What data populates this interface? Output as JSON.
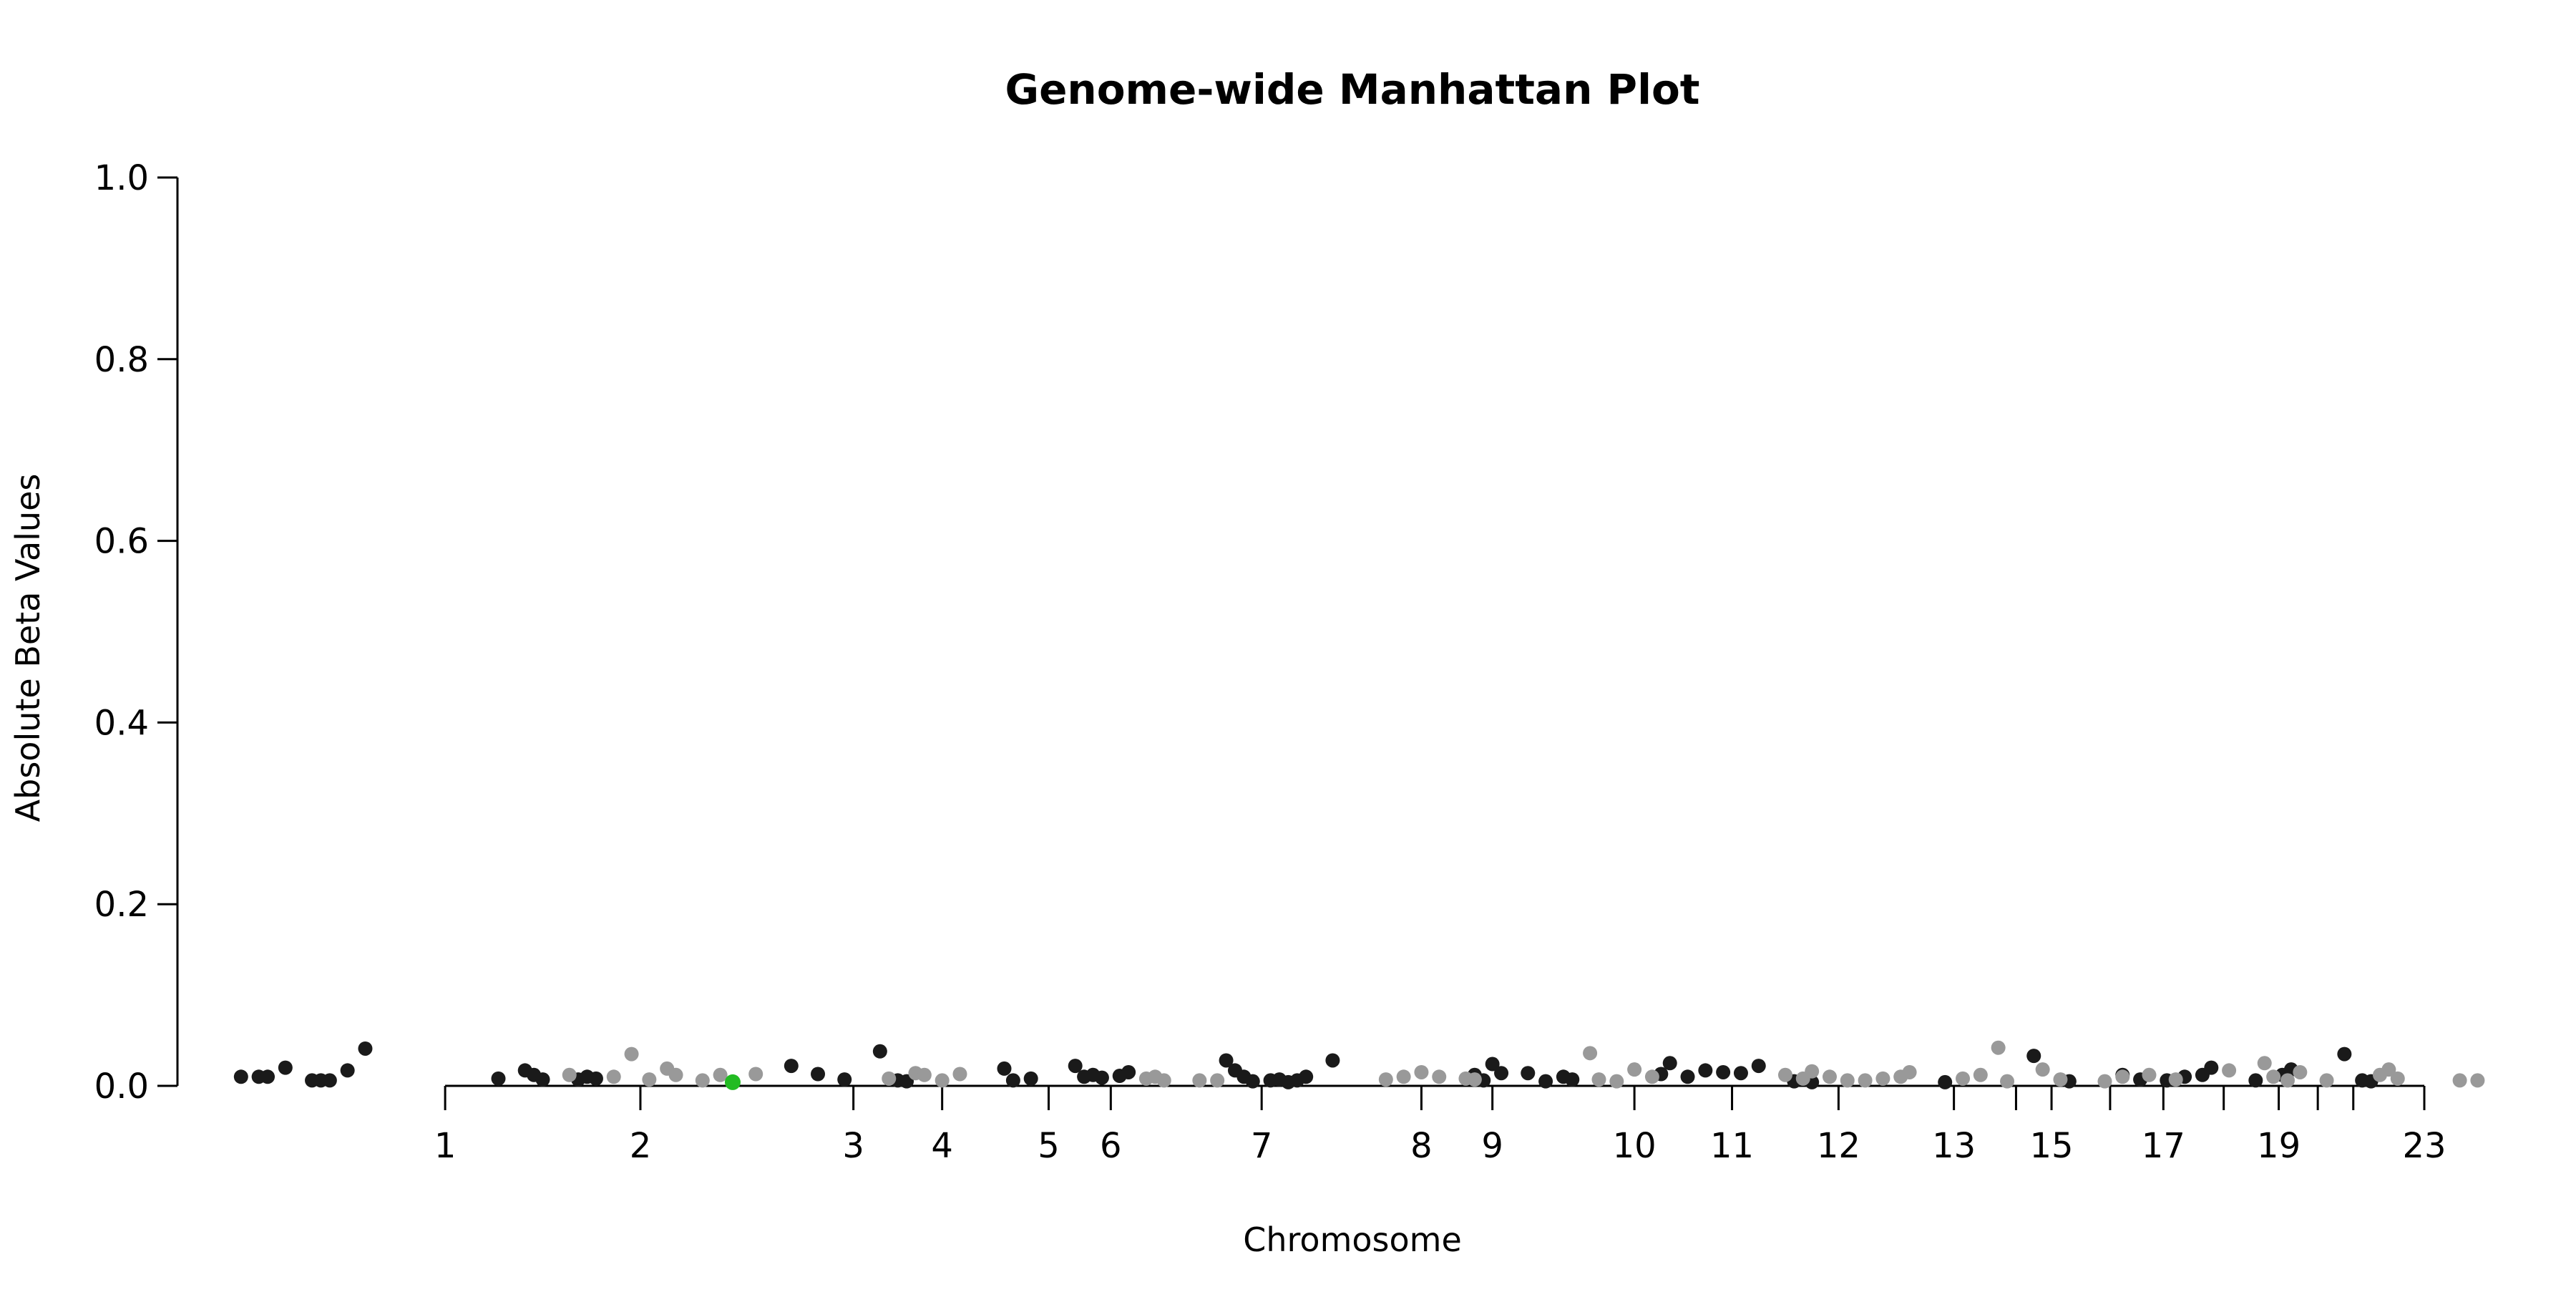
{
  "chart_data": {
    "type": "scatter",
    "title": "Genome-wide Manhattan Plot",
    "xlabel": "Chromosome",
    "ylabel": "Absolute Beta Values",
    "ylim": [
      0,
      1
    ],
    "yticks": [
      "0.0",
      "0.2",
      "0.4",
      "0.6",
      "0.8",
      "1.0"
    ],
    "grid": false,
    "colors": {
      "dark": "#1a1a1a",
      "light": "#999999",
      "highlight": "#22bb22"
    },
    "x_ticks": [
      {
        "label": "1",
        "pos": 1.0
      },
      {
        "label": "2",
        "pos": 2.1
      },
      {
        "label": "3",
        "pos": 3.3
      },
      {
        "label": "4",
        "pos": 3.8
      },
      {
        "label": "5",
        "pos": 4.4
      },
      {
        "label": "6",
        "pos": 4.75
      },
      {
        "label": "7",
        "pos": 5.6
      },
      {
        "label": "8",
        "pos": 6.5
      },
      {
        "label": "9",
        "pos": 6.9
      },
      {
        "label": "10",
        "pos": 7.7
      },
      {
        "label": "11",
        "pos": 8.25
      },
      {
        "label": "12",
        "pos": 8.85
      },
      {
        "label": "13",
        "pos": 9.5
      },
      {
        "label": "",
        "pos": 9.85
      },
      {
        "label": "15",
        "pos": 10.05
      },
      {
        "label": "",
        "pos": 10.38
      },
      {
        "label": "17",
        "pos": 10.68
      },
      {
        "label": "",
        "pos": 11.02
      },
      {
        "label": "19",
        "pos": 11.33
      },
      {
        "label": "",
        "pos": 11.55
      },
      {
        "label": "",
        "pos": 11.75
      },
      {
        "label": "23",
        "pos": 12.15
      }
    ],
    "xlim": [
      -0.5,
      12.4
    ],
    "series": [
      {
        "color_key": "dark",
        "points": [
          [
            -0.15,
            0.01
          ],
          [
            -0.05,
            0.01
          ],
          [
            0.0,
            0.01
          ],
          [
            0.1,
            0.02
          ],
          [
            0.25,
            0.006
          ],
          [
            0.3,
            0.006
          ],
          [
            0.35,
            0.006
          ],
          [
            0.45,
            0.017
          ],
          [
            0.55,
            0.041
          ],
          [
            1.3,
            0.008
          ],
          [
            1.45,
            0.017
          ],
          [
            1.5,
            0.012
          ],
          [
            1.55,
            0.007
          ],
          [
            1.75,
            0.007
          ],
          [
            1.8,
            0.01
          ],
          [
            1.85,
            0.008
          ],
          [
            2.95,
            0.022
          ],
          [
            3.1,
            0.013
          ],
          [
            3.25,
            0.007
          ],
          [
            3.45,
            0.038
          ],
          [
            3.55,
            0.006
          ],
          [
            3.6,
            0.005
          ],
          [
            4.15,
            0.019
          ],
          [
            4.2,
            0.006
          ],
          [
            4.3,
            0.008
          ],
          [
            4.55,
            0.022
          ],
          [
            4.6,
            0.01
          ],
          [
            4.65,
            0.012
          ],
          [
            4.7,
            0.009
          ],
          [
            4.8,
            0.011
          ],
          [
            4.85,
            0.015
          ],
          [
            5.4,
            0.028
          ],
          [
            5.45,
            0.017
          ],
          [
            5.5,
            0.01
          ],
          [
            5.55,
            0.005
          ],
          [
            5.65,
            0.006
          ],
          [
            5.7,
            0.007
          ],
          [
            5.75,
            0.004
          ],
          [
            5.8,
            0.006
          ],
          [
            5.85,
            0.01
          ],
          [
            6.0,
            0.028
          ],
          [
            6.8,
            0.012
          ],
          [
            6.85,
            0.006
          ],
          [
            6.9,
            0.024
          ],
          [
            6.95,
            0.014
          ],
          [
            7.1,
            0.014
          ],
          [
            7.2,
            0.005
          ],
          [
            7.3,
            0.01
          ],
          [
            7.35,
            0.007
          ],
          [
            7.85,
            0.013
          ],
          [
            7.9,
            0.025
          ],
          [
            8.0,
            0.01
          ],
          [
            8.1,
            0.017
          ],
          [
            8.2,
            0.015
          ],
          [
            8.3,
            0.014
          ],
          [
            8.4,
            0.022
          ],
          [
            8.6,
            0.005
          ],
          [
            8.7,
            0.004
          ],
          [
            9.45,
            0.004
          ],
          [
            9.95,
            0.033
          ],
          [
            10.15,
            0.005
          ],
          [
            10.45,
            0.012
          ],
          [
            10.55,
            0.007
          ],
          [
            10.7,
            0.006
          ],
          [
            10.8,
            0.01
          ],
          [
            10.9,
            0.012
          ],
          [
            10.95,
            0.02
          ],
          [
            11.2,
            0.006
          ],
          [
            11.35,
            0.012
          ],
          [
            11.4,
            0.018
          ],
          [
            11.7,
            0.035
          ],
          [
            11.8,
            0.006
          ],
          [
            11.85,
            0.005
          ]
        ]
      },
      {
        "color_key": "light",
        "points": [
          [
            1.7,
            0.012
          ],
          [
            1.95,
            0.01
          ],
          [
            2.05,
            0.035
          ],
          [
            2.15,
            0.007
          ],
          [
            2.25,
            0.019
          ],
          [
            2.3,
            0.012
          ],
          [
            2.45,
            0.006
          ],
          [
            2.55,
            0.012
          ],
          [
            2.75,
            0.013
          ],
          [
            3.5,
            0.008
          ],
          [
            3.65,
            0.014
          ],
          [
            3.7,
            0.012
          ],
          [
            3.8,
            0.006
          ],
          [
            3.9,
            0.013
          ],
          [
            4.95,
            0.008
          ],
          [
            5.0,
            0.01
          ],
          [
            5.05,
            0.006
          ],
          [
            5.25,
            0.006
          ],
          [
            5.35,
            0.006
          ],
          [
            6.3,
            0.007
          ],
          [
            6.4,
            0.01
          ],
          [
            6.5,
            0.015
          ],
          [
            6.6,
            0.01
          ],
          [
            6.75,
            0.008
          ],
          [
            6.8,
            0.007
          ],
          [
            7.45,
            0.036
          ],
          [
            7.5,
            0.007
          ],
          [
            7.6,
            0.005
          ],
          [
            7.7,
            0.018
          ],
          [
            7.8,
            0.01
          ],
          [
            8.55,
            0.012
          ],
          [
            8.65,
            0.008
          ],
          [
            8.7,
            0.016
          ],
          [
            8.8,
            0.01
          ],
          [
            8.9,
            0.006
          ],
          [
            9.0,
            0.006
          ],
          [
            9.1,
            0.008
          ],
          [
            9.2,
            0.01
          ],
          [
            9.25,
            0.015
          ],
          [
            9.55,
            0.008
          ],
          [
            9.65,
            0.012
          ],
          [
            9.75,
            0.042
          ],
          [
            9.8,
            0.005
          ],
          [
            10.0,
            0.018
          ],
          [
            10.1,
            0.007
          ],
          [
            10.35,
            0.005
          ],
          [
            10.45,
            0.01
          ],
          [
            10.6,
            0.012
          ],
          [
            10.75,
            0.007
          ],
          [
            11.05,
            0.017
          ],
          [
            11.25,
            0.025
          ],
          [
            11.3,
            0.01
          ],
          [
            11.38,
            0.006
          ],
          [
            11.45,
            0.015
          ],
          [
            11.6,
            0.006
          ],
          [
            11.9,
            0.012
          ],
          [
            11.95,
            0.018
          ],
          [
            12.0,
            0.008
          ],
          [
            12.35,
            0.006
          ],
          [
            12.45,
            0.006
          ]
        ]
      },
      {
        "color_key": "highlight",
        "points": [
          [
            2.62,
            0.004
          ]
        ]
      }
    ]
  }
}
